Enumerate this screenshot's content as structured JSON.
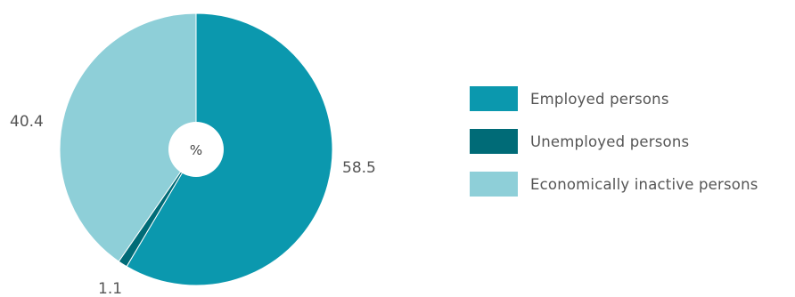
{
  "chart_data": {
    "type": "pie",
    "unit_label": "%",
    "categories": [
      "Employed persons",
      "Unemployed persons",
      "Economically inactive persons"
    ],
    "values": [
      58.5,
      1.1,
      40.4
    ],
    "value_labels": [
      "58.5",
      "1.1",
      "40.4"
    ],
    "colors": [
      "#0b98ae",
      "#006b77",
      "#8ecfd8"
    ],
    "legend_position": "right"
  }
}
